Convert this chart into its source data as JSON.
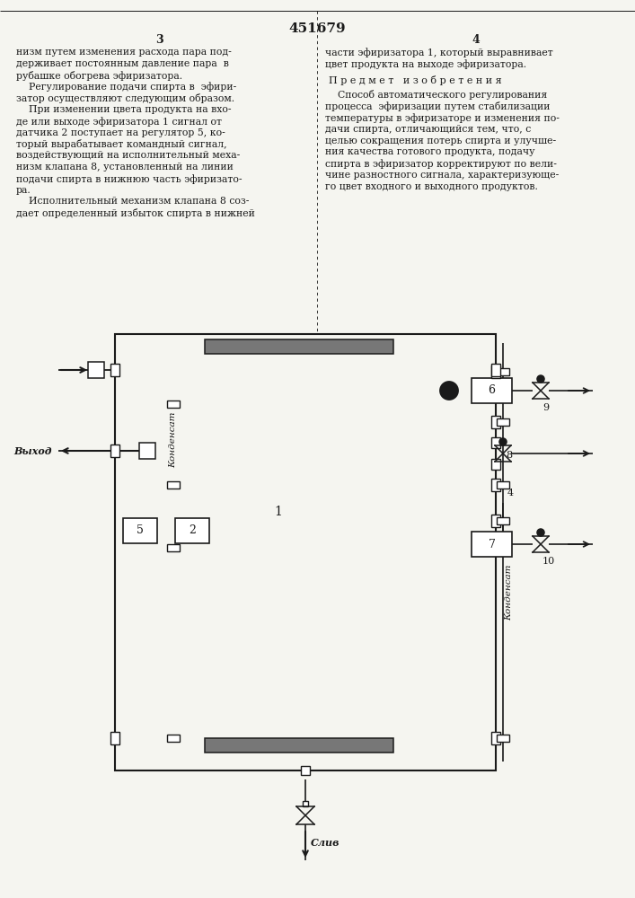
{
  "title": "451679",
  "left_col_num": "3",
  "right_col_num": "4",
  "left_text": [
    "низм путем изменения расхода пара под-",
    "держивает постоянным давление пара  в",
    "рубашке обогрева эфиризатора.",
    "    Регулирование подачи спирта в  эфири-",
    "затор осуществляют следующим образом.",
    "    При изменении цвета продукта на вхо-",
    "де или выходе эфиризатора 1 сигнал от",
    "датчика 2 поступает на регулятор 5, ко-",
    "торый вырабатывает командный сигнал,",
    "воздействующий на исполнительный меха-",
    "низм клапана 8, установленный на линии",
    "подачи спирта в нижнюю часть эфиризато-",
    "ра.",
    "    Исполнительный механизм клапана 8 соз-",
    "дает определенный избыток спирта в нижней"
  ],
  "right_text_1": [
    "части эфиризатора 1, который выравнивает",
    "цвет продукта на выходе эфиризатора."
  ],
  "predmet_line": "П р е д м е т   и з о б р е т е н и я",
  "right_text_2": [
    "    Способ автоматического регулирования",
    "процесса  эфиризации путем стабилизации",
    "температуры в эфиризаторе и изменения по-",
    "дачи спирта, отличающийся тем, что, с",
    "целью сокращения потерь спирта и улучше-",
    "ния качества готового продукта, подачу",
    "спирта в эфиризатор корректируют по вели-",
    "чине разностного сигнала, характеризующе-",
    "го цвет входного и выходного продуктов."
  ],
  "bg_color": "#f5f5f0",
  "lc": "#1a1a1a"
}
